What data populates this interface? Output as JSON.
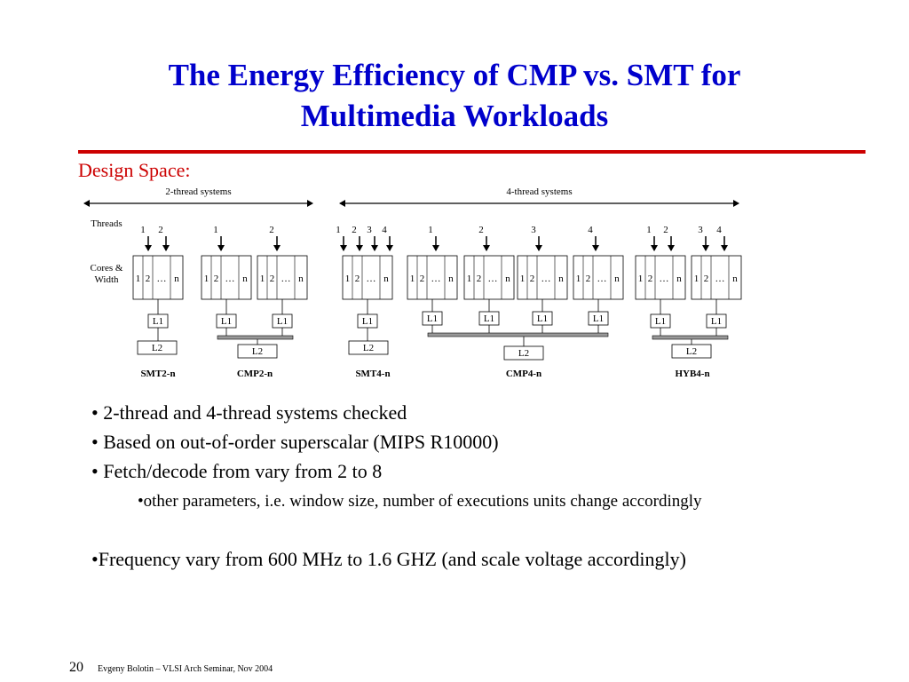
{
  "header": {
    "title_lines": [
      "The Energy Efficiency of CMP vs. SMT for",
      "Multimedia Workloads"
    ]
  },
  "section": "Design Space:",
  "diagram": {
    "groups": [
      "2-thread systems",
      "4-thread systems"
    ],
    "row_labels": {
      "threads": "Threads",
      "cores": "Cores & Width"
    },
    "systems": [
      {
        "name": "SMT2-n",
        "threads": [
          "1",
          "2"
        ],
        "cores": [
          {
            "cells": [
              "1",
              "2",
              "…",
              "n"
            ],
            "l1": "L1"
          }
        ],
        "l2": "L2"
      },
      {
        "name": "CMP2-n",
        "threads": [
          "1",
          "2"
        ],
        "cores": [
          {
            "cells": [
              "1",
              "2",
              "…",
              "n"
            ],
            "l1": "L1"
          },
          {
            "cells": [
              "1",
              "2",
              "…",
              "n"
            ],
            "l1": "L1"
          }
        ],
        "l2": "L2"
      },
      {
        "name": "SMT4-n",
        "threads": [
          "1",
          "2",
          "3",
          "4"
        ],
        "cores": [
          {
            "cells": [
              "1",
              "2",
              "…",
              "n"
            ],
            "l1": "L1"
          }
        ],
        "l2": "L2"
      },
      {
        "name": "CMP4-n",
        "threads": [
          "1",
          "2",
          "3",
          "4"
        ],
        "cores": [
          {
            "cells": [
              "1",
              "2",
              "…",
              "n"
            ],
            "l1": "L1"
          },
          {
            "cells": [
              "1",
              "2",
              "…",
              "n"
            ],
            "l1": "L1"
          },
          {
            "cells": [
              "1",
              "2",
              "…",
              "n"
            ],
            "l1": "L1"
          },
          {
            "cells": [
              "1",
              "2",
              "…",
              "n"
            ],
            "l1": "L1"
          }
        ],
        "l2": "L2"
      },
      {
        "name": "HYB4-n",
        "threads": [
          "1",
          "2",
          "3",
          "4"
        ],
        "cores": [
          {
            "cells": [
              "1",
              "2",
              "…",
              "n"
            ],
            "l1": "L1"
          },
          {
            "cells": [
              "1",
              "2",
              "…",
              "n"
            ],
            "l1": "L1"
          }
        ],
        "l2": "L2"
      }
    ]
  },
  "body": {
    "points": [
      "• 2-thread and 4-thread systems checked",
      "• Based on out-of-order superscalar (MIPS R10000)",
      "• Fetch/decode from vary from 2 to 8",
      "•Frequency vary from 600 MHz to 1.6 GHZ (and scale voltage accordingly)"
    ],
    "sub_points": [
      "•other parameters,  i.e. window size, number of executions units change accordingly"
    ]
  },
  "footer": {
    "page": "20",
    "credit": "Evgeny Bolotin – VLSI Arch Seminar, Nov 2004"
  }
}
